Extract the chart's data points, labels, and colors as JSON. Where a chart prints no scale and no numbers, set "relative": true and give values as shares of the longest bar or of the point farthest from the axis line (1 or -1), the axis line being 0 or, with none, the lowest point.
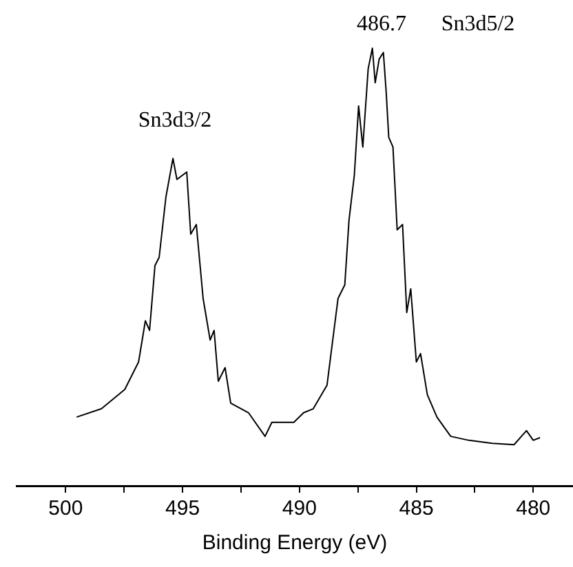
{
  "chart_data": {
    "type": "line",
    "relative": true,
    "xlabel": "Binding Energy (eV)",
    "color": "#000000",
    "xlim": [
      502.1,
      478.3
    ],
    "xticks": [
      500,
      {
        "value": 497.5,
        "label": null
      },
      495,
      {
        "value": 492.5,
        "label": null
      },
      490,
      {
        "value": 487.5,
        "label": null
      },
      485,
      {
        "value": 482.5,
        "label": null
      },
      480
    ],
    "tick_labels": "x",
    "grid": false,
    "legend": false,
    "marker": "none",
    "line_style": "solid",
    "annotations": [
      "Sn3d3/2",
      "486.7",
      "Sn3d5/2"
    ],
    "x": [
      499.53,
      498.47,
      497.47,
      496.88,
      496.59,
      496.41,
      496.18,
      496.0,
      495.71,
      495.41,
      495.24,
      494.82,
      494.65,
      494.41,
      494.12,
      493.82,
      493.65,
      493.47,
      493.18,
      492.94,
      492.18,
      491.47,
      491.18,
      490.24,
      489.82,
      489.41,
      488.82,
      488.65,
      488.35,
      488.06,
      487.88,
      487.65,
      487.47,
      487.29,
      487.06,
      486.88,
      486.76,
      486.59,
      486.41,
      486.29,
      486.18,
      486.0,
      485.82,
      485.59,
      485.41,
      485.24,
      485.0,
      484.82,
      484.53,
      484.12,
      483.53,
      482.76,
      481.76,
      480.82,
      480.29,
      480.0,
      479.71
    ],
    "values": [
      0.157,
      0.176,
      0.22,
      0.283,
      0.377,
      0.355,
      0.503,
      0.522,
      0.66,
      0.748,
      0.7,
      0.717,
      0.575,
      0.597,
      0.428,
      0.333,
      0.355,
      0.239,
      0.27,
      0.189,
      0.167,
      0.113,
      0.145,
      0.145,
      0.167,
      0.176,
      0.23,
      0.302,
      0.428,
      0.459,
      0.607,
      0.711,
      0.868,
      0.774,
      0.953,
      1,
      0.921,
      0.975,
      0.99,
      0.9,
      0.796,
      0.774,
      0.585,
      0.597,
      0.396,
      0.45,
      0.283,
      0.302,
      0.208,
      0.157,
      0.113,
      0.104,
      0.097,
      0.094,
      0.126,
      0.104,
      0.11
    ]
  }
}
